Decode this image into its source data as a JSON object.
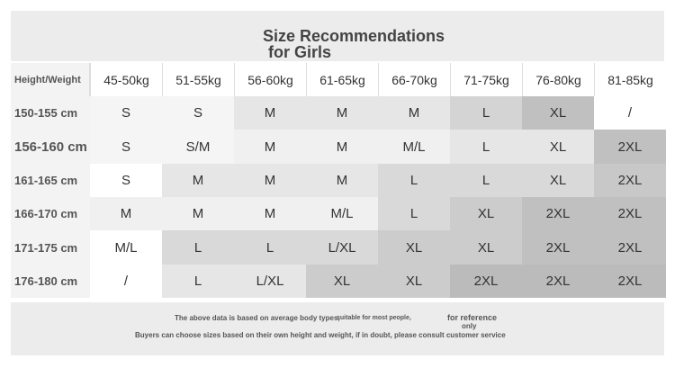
{
  "header": {
    "title": "Size Recommendations",
    "subtitle": "for Girls"
  },
  "table": {
    "corner": "Height/Weight",
    "columns": [
      "45-50kg",
      "51-55kg",
      "56-60kg",
      "61-65kg",
      "66-70kg",
      "71-75kg",
      "76-80kg",
      "81-85kg"
    ],
    "rows": [
      {
        "height": "150-155 cm",
        "sizes": [
          "S",
          "S",
          "M",
          "M",
          "M",
          "L",
          "XL",
          "/"
        ]
      },
      {
        "height": "156-160 cm",
        "sizes": [
          "S",
          "S/M",
          "M",
          "M",
          "M/L",
          "L",
          "XL",
          "2XL"
        ]
      },
      {
        "height": "161-165 cm",
        "sizes": [
          "S",
          "M",
          "M",
          "M",
          "L",
          "L",
          "XL",
          "2XL"
        ]
      },
      {
        "height": "166-170 cm",
        "sizes": [
          "M",
          "M",
          "M",
          "M/L",
          "L",
          "XL",
          "2XL",
          "2XL"
        ]
      },
      {
        "height": "171-175 cm",
        "sizes": [
          "M/L",
          "L",
          "L",
          "L/XL",
          "XL",
          "XL",
          "2XL",
          "2XL"
        ]
      },
      {
        "height": "176-180 cm",
        "sizes": [
          "/",
          "L",
          "L/XL",
          "XL",
          "XL",
          "2XL",
          "2XL",
          "2XL"
        ]
      }
    ]
  },
  "footer": {
    "note_1": "The above data is based on average body types,",
    "note_2": "suitable for most people,",
    "note_3": "for reference",
    "note_4": "only",
    "note_5": "Buyers can choose sizes based on their own height and weight, if in doubt, please consult customer service"
  }
}
